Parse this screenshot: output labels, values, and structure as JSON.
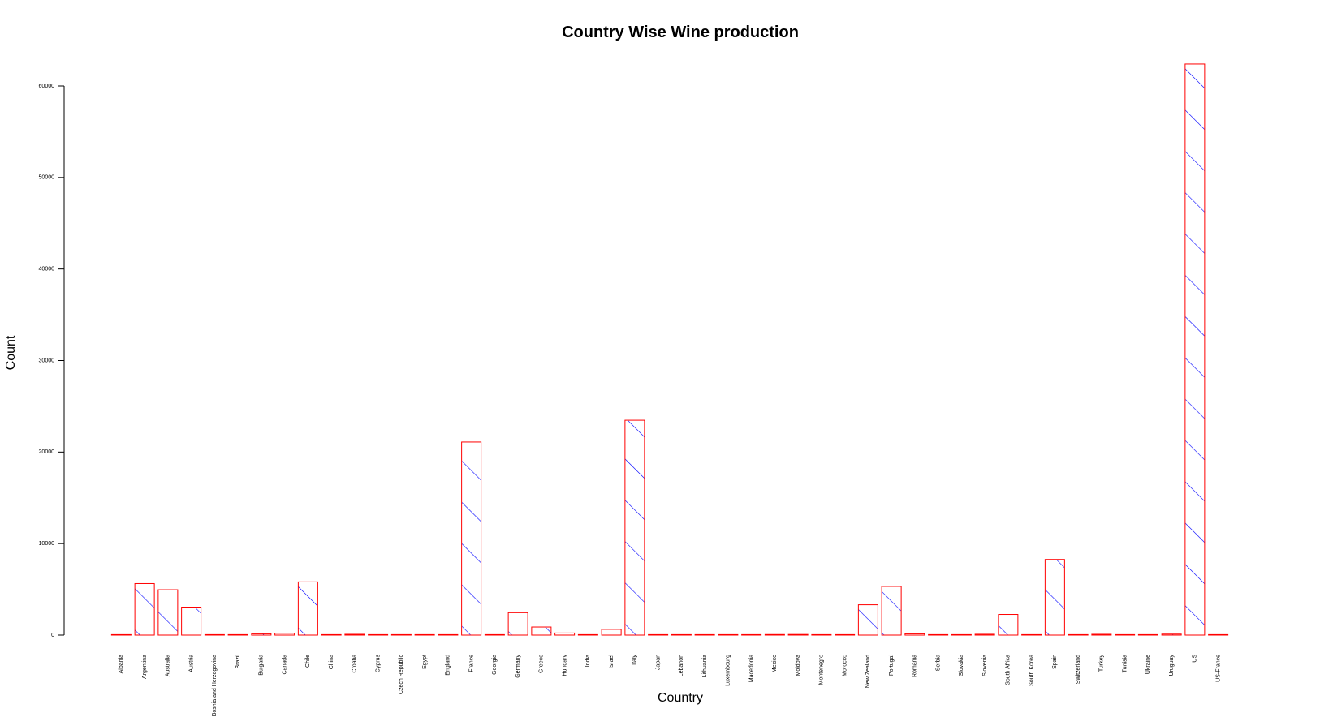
{
  "chart_data": {
    "type": "bar",
    "title": "Country Wise Wine production",
    "xlabel": "Country",
    "ylabel": "Count",
    "yticks": [
      0,
      10000,
      20000,
      30000,
      40000,
      50000,
      60000
    ],
    "ylim": [
      0,
      60000
    ],
    "grid": false,
    "legend": "none",
    "colors": {
      "bar_border": "#ff0000",
      "hatch": "#0000ff",
      "axis": "#000000"
    },
    "categories": [
      "Albania",
      "Argentina",
      "Australia",
      "Austria",
      "Bosnia and Herzegovina",
      "Brazil",
      "Bulgaria",
      "Canada",
      "Chile",
      "China",
      "Croatia",
      "Cyprus",
      "Czech Republic",
      "Egypt",
      "England",
      "France",
      "Georgia",
      "Germany",
      "Greece",
      "Hungary",
      "India",
      "Israel",
      "Italy",
      "Japan",
      "Lebanon",
      "Lithuania",
      "Luxembourg",
      "Macedonia",
      "Mexico",
      "Moldova",
      "Montenegro",
      "Morocco",
      "New Zealand",
      "Portugal",
      "Romania",
      "Serbia",
      "Slovakia",
      "Slovenia",
      "South Africa",
      "South Korea",
      "Spain",
      "Switzerland",
      "Turkey",
      "Tunisia",
      "Ukraine",
      "Uruguay",
      "US",
      "US-France"
    ],
    "values": [
      3,
      5630,
      4957,
      3057,
      4,
      25,
      141,
      196,
      5816,
      3,
      89,
      31,
      12,
      3,
      9,
      21098,
      43,
      2452,
      884,
      231,
      8,
      630,
      23478,
      2,
      37,
      8,
      9,
      16,
      63,
      71,
      4,
      12,
      3315,
      5322,
      139,
      14,
      3,
      93,
      2258,
      6,
      8268,
      4,
      90,
      13,
      5,
      109,
      62397,
      1
    ]
  }
}
